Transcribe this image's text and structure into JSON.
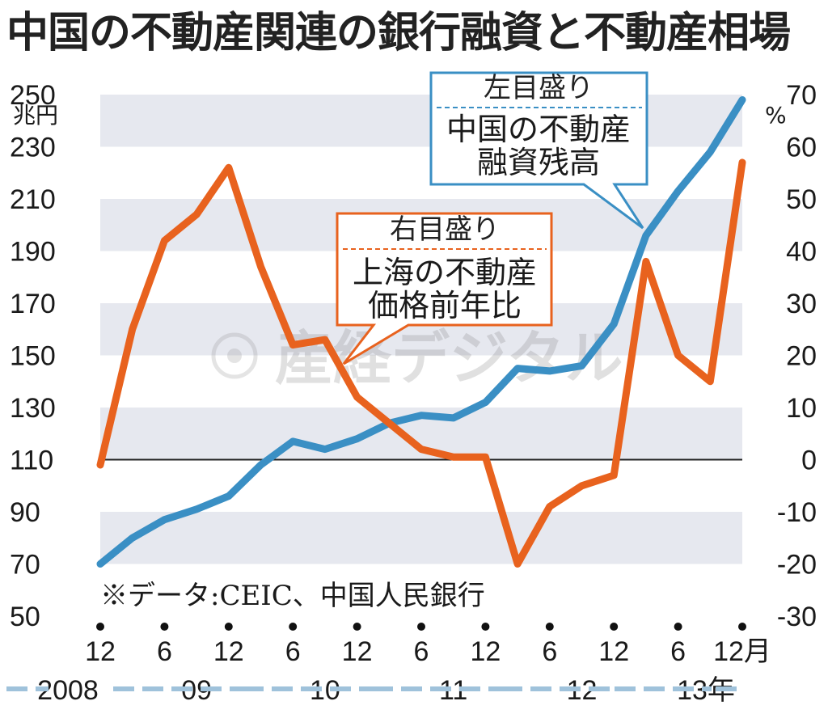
{
  "title": "中国の不動産関連の銀行融資と不動産相場",
  "chart_data": {
    "type": "line",
    "left_axis": {
      "unit_top": "250",
      "unit_label": "兆円",
      "ticks": [
        250,
        230,
        210,
        190,
        170,
        150,
        130,
        110,
        90,
        70,
        50
      ],
      "range": [
        50,
        250
      ]
    },
    "right_axis": {
      "unit_top": "70",
      "unit_label": "%",
      "ticks": [
        70,
        60,
        50,
        40,
        30,
        20,
        10,
        0,
        -10,
        -20,
        -30
      ],
      "tick_labels": [
        "70",
        "60",
        "50",
        "40",
        "30",
        "20",
        "10",
        "0",
        "-10",
        "-20",
        "-30"
      ],
      "range": [
        -30,
        70
      ]
    },
    "x_tick_labels": [
      "12",
      "6",
      "12",
      "6",
      "12",
      "6",
      "12",
      "6",
      "12",
      "6",
      "12月"
    ],
    "year_labels": [
      "2008",
      "09",
      "10",
      "11",
      "12",
      "13年"
    ],
    "series": [
      {
        "name": "中国の不動産融資残高",
        "axis": "left",
        "color": "#3a8fc4",
        "x": [
          0,
          1,
          2,
          3,
          4,
          5,
          6,
          7,
          8,
          9,
          10,
          11,
          12,
          13,
          14,
          15,
          16,
          17,
          18,
          19,
          20
        ],
        "values": [
          70,
          80,
          87,
          91,
          96,
          108,
          117,
          114,
          118,
          124,
          127,
          126,
          132,
          145,
          144,
          146,
          162,
          196,
          213,
          228,
          248
        ]
      },
      {
        "name": "上海の不動産価格前年比",
        "axis": "right",
        "color": "#e8621e",
        "x": [
          0,
          1,
          2,
          3,
          4,
          5,
          6,
          7,
          8,
          9,
          10,
          11,
          12,
          13,
          14,
          15,
          16,
          17,
          18,
          19,
          20
        ],
        "values": [
          -1,
          25,
          42,
          47,
          56,
          37,
          22,
          23,
          12,
          7,
          2,
          0.5,
          0.5,
          -20,
          -9,
          -5,
          -3,
          38,
          20,
          15,
          57
        ]
      }
    ],
    "legend_left": {
      "title": "左目盛り",
      "line1": "中国の不動産",
      "line2": "融資残高"
    },
    "legend_right": {
      "title": "右目盛り",
      "line1": "上海の不動産",
      "line2": "価格前年比"
    },
    "source_note": "※データ:CEIC、中国人民銀行",
    "watermark": "産経デジタル",
    "band_color": "#e6e8ef",
    "zero_line_color": "#222222"
  }
}
